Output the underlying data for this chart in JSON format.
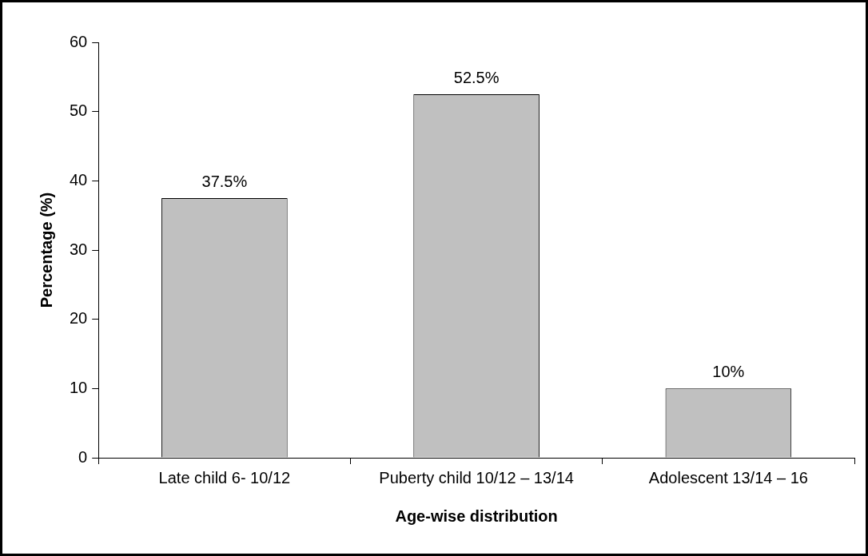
{
  "chart_data": {
    "type": "bar",
    "xlabel": "Age-wise distribution",
    "ylabel": "Percentage (%)",
    "categories": [
      "Late child 6- 10/12",
      "Puberty child 10/12 – 13/14",
      "Adolescent 13/14 – 16"
    ],
    "values": [
      37.5,
      52.5,
      10
    ],
    "color": "#c0c0c0",
    "value_labels": [
      "37.5%",
      "52.5%",
      "10%"
    ],
    "ylim": [
      0,
      60
    ],
    "yticks": [
      0,
      10,
      20,
      30,
      40,
      50,
      60
    ],
    "grid": false,
    "legend": false
  }
}
